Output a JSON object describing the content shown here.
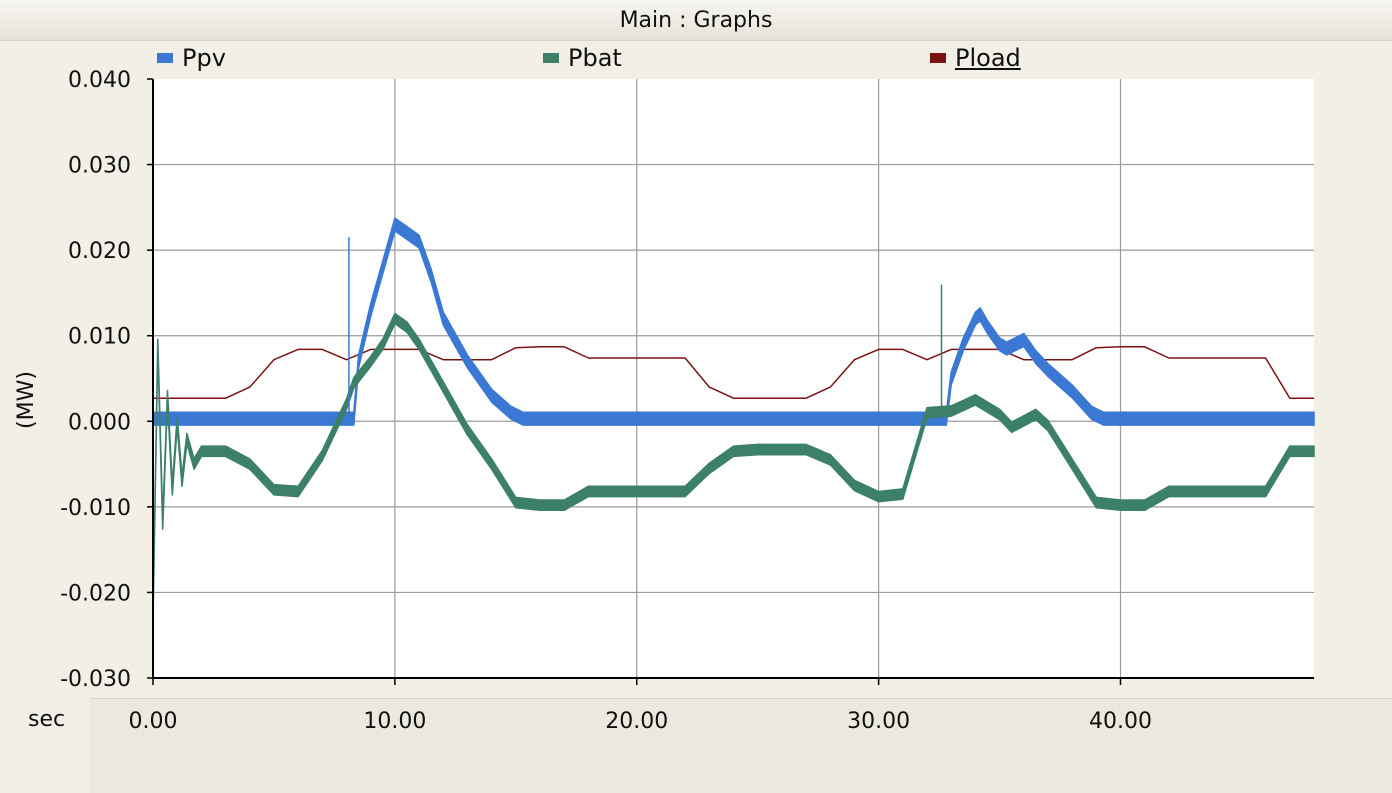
{
  "window": {
    "title": "Main : Graphs"
  },
  "legend": {
    "items": [
      {
        "name": "Ppv",
        "color": "#3a78d4"
      },
      {
        "name": "Pbat",
        "color": "#3c8068"
      },
      {
        "name": "Pload",
        "color": "#7a1212",
        "selected": true
      }
    ]
  },
  "axes": {
    "y_title": "(MW)",
    "x_unit_label": "sec",
    "y_ticks": [
      "0.040",
      "0.030",
      "0.020",
      "0.010",
      "0.000",
      "-0.010",
      "-0.020",
      "-0.030"
    ],
    "x_ticks": [
      "0.00",
      "10.00",
      "20.00",
      "30.00",
      "40.00"
    ]
  },
  "chart_data": {
    "type": "line",
    "title": "Main : Graphs",
    "xlabel": "sec",
    "ylabel": "(MW)",
    "xlim": [
      0,
      48
    ],
    "ylim": [
      -0.03,
      0.04
    ],
    "grid": true,
    "legend_position": "top",
    "y_tick_values": [
      0.04,
      0.03,
      0.02,
      0.01,
      0.0,
      -0.01,
      -0.02,
      -0.03
    ],
    "x_tick_values": [
      0,
      10,
      20,
      30,
      40
    ],
    "series": [
      {
        "name": "Pload",
        "color": "#7a1212",
        "x": [
          0,
          3.0,
          4.0,
          5.0,
          6.0,
          7.0,
          8.0,
          9.0,
          10.0,
          11.0,
          12.0,
          13.0,
          14.0,
          15.0,
          16.0,
          17.0,
          18.0,
          19.0,
          20.0,
          21.0,
          22.0,
          23.0,
          24.0,
          25.0,
          26.0,
          27.0,
          28.0,
          29.0,
          30.0,
          31.0,
          32.0,
          33.0,
          34.0,
          35.0,
          36.0,
          37.0,
          38.0,
          39.0,
          40.0,
          41.0,
          42.0,
          43.0,
          44.0,
          45.0,
          46.0,
          47.0,
          48.0
        ],
        "y": [
          0.0027,
          0.0027,
          0.004,
          0.0072,
          0.0084,
          0.0084,
          0.0072,
          0.0084,
          0.0084,
          0.0084,
          0.0072,
          0.0072,
          0.0072,
          0.0086,
          0.0087,
          0.0087,
          0.0074,
          0.0074,
          0.0074,
          0.0074,
          0.0074,
          0.004,
          0.0027,
          0.0027,
          0.0027,
          0.0027,
          0.004,
          0.0072,
          0.0084,
          0.0084,
          0.0072,
          0.0084,
          0.0084,
          0.0084,
          0.0072,
          0.0072,
          0.0072,
          0.0086,
          0.0087,
          0.0087,
          0.0074,
          0.0074,
          0.0074,
          0.0074,
          0.0074,
          0.0027,
          0.0027
        ]
      },
      {
        "name": "Ppv",
        "color": "#3a78d4",
        "x": [
          0,
          8.3,
          8.5,
          9.0,
          9.5,
          10.0,
          10.5,
          11.0,
          11.5,
          12.0,
          13.0,
          14.0,
          14.8,
          15.3,
          15.6,
          32.8,
          33.0,
          33.5,
          34.0,
          34.2,
          34.5,
          35.0,
          35.3,
          36.0,
          36.5,
          37.0,
          38.0,
          38.8,
          39.3,
          39.6,
          48.0
        ],
        "y": [
          0.0003,
          0.0003,
          0.007,
          0.013,
          0.018,
          0.023,
          0.022,
          0.021,
          0.017,
          0.012,
          0.007,
          0.003,
          0.001,
          0.0003,
          0.0003,
          0.0003,
          0.005,
          0.009,
          0.012,
          0.0125,
          0.011,
          0.009,
          0.0085,
          0.0095,
          0.0075,
          0.006,
          0.0035,
          0.001,
          0.0003,
          0.0003,
          0.0003
        ],
        "band": 0.0015
      },
      {
        "name": "Pbat",
        "color": "#3c8068",
        "x": [
          0,
          0.2,
          0.4,
          0.6,
          0.8,
          1.0,
          1.2,
          1.4,
          1.7,
          2.0,
          3.0,
          4.0,
          5.0,
          6.0,
          7.0,
          8.0,
          8.3,
          9.0,
          9.5,
          10.0,
          10.5,
          11.0,
          12.0,
          13.0,
          14.0,
          15.0,
          16.0,
          17.0,
          18.0,
          20.0,
          22.0,
          23.0,
          24.0,
          25.0,
          26.0,
          27.0,
          28.0,
          29.0,
          30.0,
          31.0,
          32.0,
          33.0,
          34.0,
          35.0,
          35.5,
          36.5,
          37.0,
          38.0,
          39.0,
          40.0,
          41.0,
          42.0,
          44.0,
          46.0,
          47.0,
          48.0
        ],
        "y": [
          -0.023,
          0.009,
          -0.012,
          0.003,
          -0.008,
          0.0,
          -0.007,
          -0.002,
          -0.005,
          -0.0035,
          -0.0035,
          -0.005,
          -0.008,
          -0.0082,
          -0.004,
          0.002,
          0.0045,
          0.007,
          0.009,
          0.012,
          0.011,
          0.009,
          0.004,
          -0.001,
          -0.005,
          -0.0095,
          -0.0098,
          -0.0098,
          -0.0082,
          -0.0082,
          -0.0082,
          -0.0055,
          -0.0035,
          -0.0033,
          -0.0033,
          -0.0033,
          -0.0045,
          -0.0075,
          -0.0088,
          -0.0085,
          0.001,
          0.0012,
          0.0025,
          0.0008,
          -0.0007,
          0.0008,
          -0.0005,
          -0.005,
          -0.0095,
          -0.0098,
          -0.0098,
          -0.0082,
          -0.0082,
          -0.0082,
          -0.0035,
          -0.0035
        ],
        "band": 0.0012
      }
    ],
    "spikes": [
      {
        "series": "Ppv",
        "x": 8.1,
        "y_top": 0.0215,
        "y_bottom": 0.0003
      },
      {
        "series": "Pbat",
        "x": 32.6,
        "y_top": 0.016,
        "y_bottom": 0.001
      }
    ]
  }
}
